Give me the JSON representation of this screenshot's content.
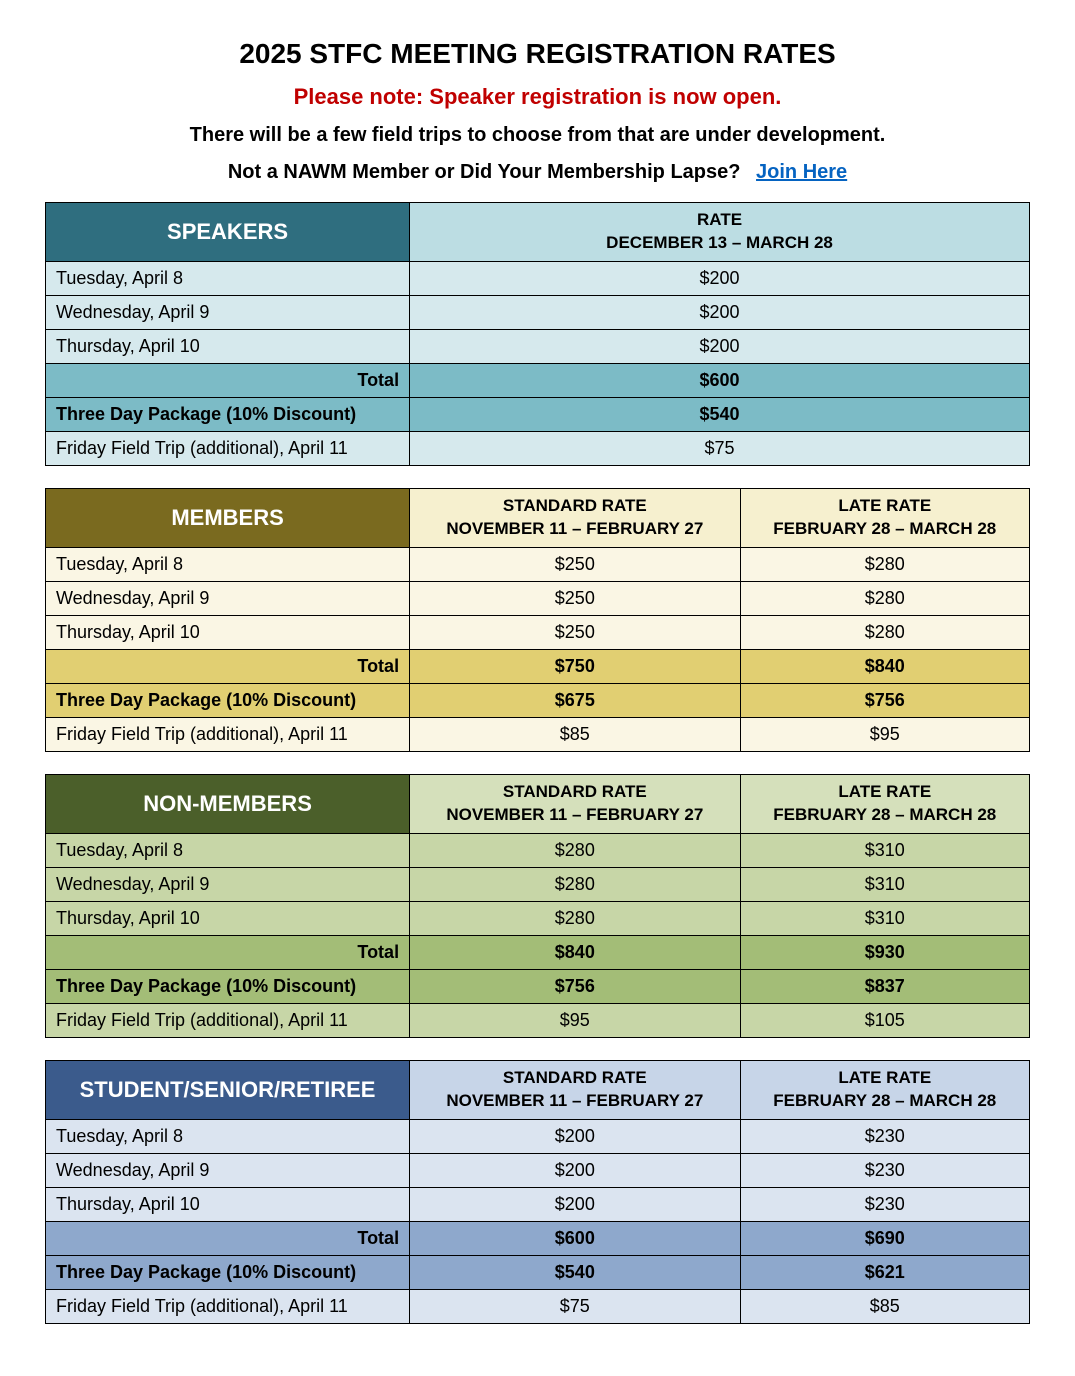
{
  "header": {
    "title": "2025 STFC MEETING REGISTRATION RATES",
    "notice": "Please note: Speaker registration is now open.",
    "notice_color": "#c00000",
    "subtext": "There will be a few field trips to choose from that are under development.",
    "join_prompt": "Not a NAWM Member or Did Your Membership Lapse?",
    "join_link_text": "Join Here",
    "join_link_color": "#0563c1"
  },
  "row_labels": {
    "tue": "Tuesday, April 8",
    "wed": "Wednesday, April 9",
    "thu": "Thursday, April 10",
    "total": "Total",
    "pkg": "Three Day Package (10% Discount)",
    "trip": "Friday Field Trip (additional), April 11"
  },
  "rate_headers": {
    "single_line1": "RATE",
    "single_line2": "DECEMBER 13 – MARCH 28",
    "std_line1": "STANDARD RATE",
    "std_line2": "NOVEMBER 11 – FEBRUARY 27",
    "late_line1": "LATE RATE",
    "late_line2": "FEBRUARY 28 – MARCH 28"
  },
  "tables": {
    "speakers": {
      "category": "SPEAKERS",
      "colors": {
        "header_bg": "#2f6e7f",
        "rate_bg": "#bcdde3",
        "row_bg": "#d6e9ed",
        "total_bg": "#7cbbc6",
        "pkg_bg": "#7cbbc6"
      },
      "single_col": true,
      "rows": {
        "tue": "$200",
        "wed": "$200",
        "thu": "$200",
        "total": "$600",
        "pkg": "$540",
        "trip": "$75"
      }
    },
    "members": {
      "category": "MEMBERS",
      "colors": {
        "header_bg": "#7a6a1f",
        "rate_bg": "#f6f0cf",
        "row_bg": "#faf6e4",
        "total_bg": "#e1cf72",
        "pkg_bg": "#e1cf72"
      },
      "rows": {
        "tue": {
          "std": "$250",
          "late": "$280"
        },
        "wed": {
          "std": "$250",
          "late": "$280"
        },
        "thu": {
          "std": "$250",
          "late": "$280"
        },
        "total": {
          "std": "$750",
          "late": "$840"
        },
        "pkg": {
          "std": "$675",
          "late": "$756"
        },
        "trip": {
          "std": "$85",
          "late": "$95"
        }
      }
    },
    "nonmembers": {
      "category": "NON-MEMBERS",
      "colors": {
        "header_bg": "#4b5f2a",
        "rate_bg": "#d5e0bb",
        "row_bg": "#c7d6a7",
        "total_bg": "#a3bd77",
        "pkg_bg": "#a3bd77"
      },
      "rows": {
        "tue": {
          "std": "$280",
          "late": "$310"
        },
        "wed": {
          "std": "$280",
          "late": "$310"
        },
        "thu": {
          "std": "$280",
          "late": "$310"
        },
        "total": {
          "std": "$840",
          "late": "$930"
        },
        "pkg": {
          "std": "$756",
          "late": "$837"
        },
        "trip": {
          "std": "$95",
          "late": "$105"
        }
      }
    },
    "student": {
      "category": "STUDENT/SENIOR/RETIREE",
      "colors": {
        "header_bg": "#3b5b8c",
        "rate_bg": "#c7d5e8",
        "row_bg": "#dbe4f0",
        "total_bg": "#8ea8cc",
        "pkg_bg": "#8ea8cc"
      },
      "rows": {
        "tue": {
          "std": "$200",
          "late": "$230"
        },
        "wed": {
          "std": "$200",
          "late": "$230"
        },
        "thu": {
          "std": "$200",
          "late": "$230"
        },
        "total": {
          "std": "$600",
          "late": "$690"
        },
        "pkg": {
          "std": "$540",
          "late": "$621"
        },
        "trip": {
          "std": "$75",
          "late": "$85"
        }
      }
    }
  }
}
